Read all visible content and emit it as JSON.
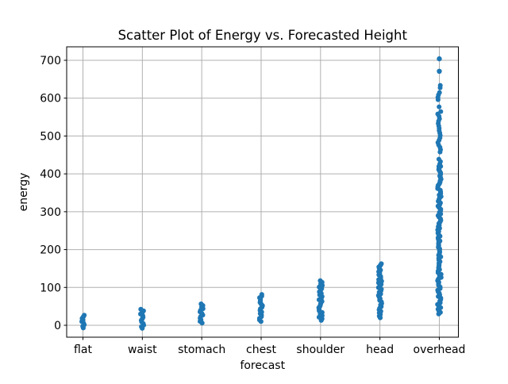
{
  "chart_data": {
    "type": "scatter",
    "title": "Scatter Plot of Energy vs. Forecasted Height",
    "xlabel": "forecast",
    "ylabel": "energy",
    "categories": [
      "flat",
      "waist",
      "stomach",
      "chest",
      "shoulder",
      "head",
      "overhead"
    ],
    "yticks": [
      0,
      100,
      200,
      300,
      400,
      500,
      600,
      700
    ],
    "ylim": [
      -31,
      736
    ],
    "grid": true,
    "legend": false,
    "marker_color": "#1f77b4",
    "grid_color": "#b0b0b0",
    "series": [
      {
        "category": "flat",
        "min": -7,
        "max": 29
      },
      {
        "category": "waist",
        "min": -8,
        "max": 46
      },
      {
        "category": "stomach",
        "min": 6,
        "max": 60
      },
      {
        "category": "chest",
        "min": 10,
        "max": 82
      },
      {
        "category": "shoulder",
        "min": 13,
        "max": 121
      },
      {
        "category": "head",
        "min": 20,
        "max": 165
      },
      {
        "category": "overhead",
        "min": 30,
        "max": 635,
        "dense_max": 420,
        "gaps": [
          [
            578,
            592
          ]
        ],
        "outliers": [
          671,
          704
        ]
      }
    ]
  }
}
